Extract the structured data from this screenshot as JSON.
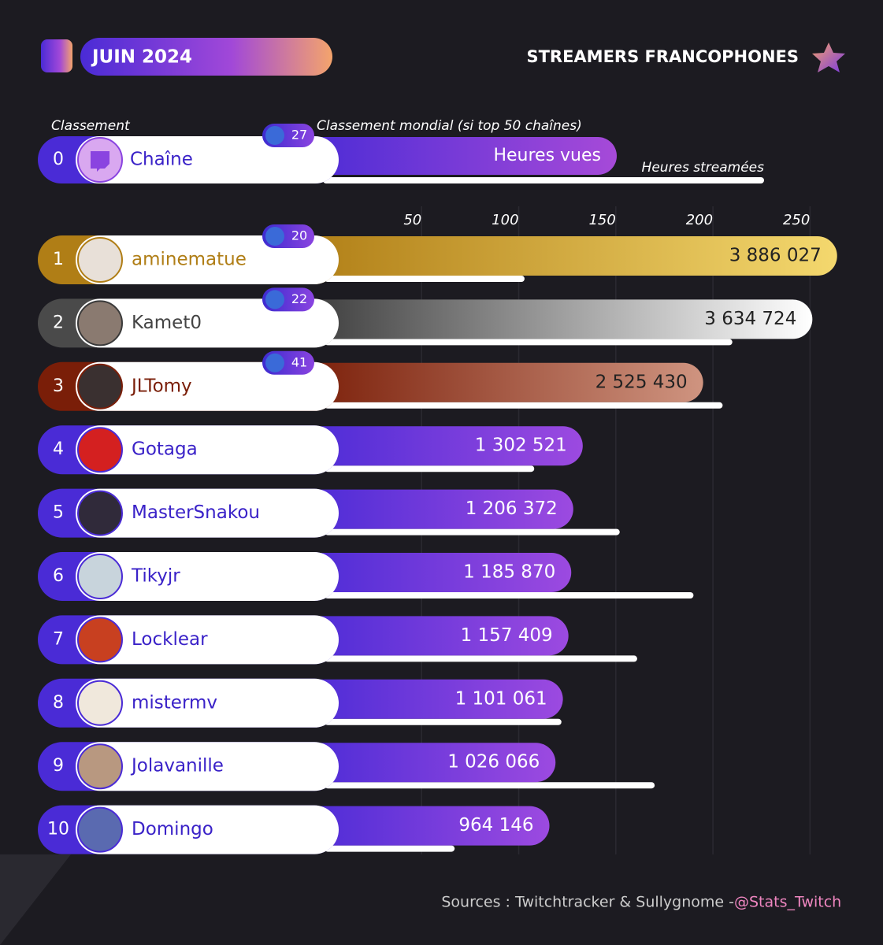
{
  "chart_data": {
    "type": "bar",
    "title": "JUIN 2024",
    "subtitle": "STREAMERS FRANCOPHONES",
    "rank_label": "Classement",
    "world_rank_label": "Classement mondial (si top 50 chaînes)",
    "legend_example": {
      "rank": 0,
      "channel": "Chaîne",
      "world_rank": 27
    },
    "categories": [
      "aminematue",
      "Kamet0",
      "JLTomy",
      "Gotaga",
      "MasterSnakou",
      "Tikyjr",
      "Locklear",
      "mistermv",
      "Jolavanille",
      "Domingo"
    ],
    "ranks": [
      1,
      2,
      3,
      4,
      5,
      6,
      7,
      8,
      9,
      10
    ],
    "world_ranks": [
      20,
      22,
      41,
      null,
      null,
      null,
      null,
      null,
      null,
      null
    ],
    "xlim": [
      0,
      260
    ],
    "xticks": [
      50,
      100,
      150,
      200,
      250
    ],
    "x2lim": [
      0,
      4000000
    ],
    "series": [
      {
        "name": "Heures vues",
        "axis": "x2",
        "colors": [
          "#f4d86e",
          "#ffffff",
          "#cf9480",
          "#9c4ae0",
          "#9c4ae0",
          "#9c4ae0",
          "#9c4ae0",
          "#9c4ae0",
          "#9c4ae0",
          "#9c4ae0"
        ],
        "base_colors": [
          "#b07e16",
          "#3a3a3a",
          "#7a1e08",
          "#4a2bd6",
          "#4a2bd6",
          "#4a2bd6",
          "#4a2bd6",
          "#4a2bd6",
          "#4a2bd6",
          "#4a2bd6"
        ],
        "values": [
          3886027,
          3634724,
          2525430,
          1302521,
          1206372,
          1185870,
          1157409,
          1101061,
          1026066,
          964146
        ],
        "value_labels": [
          "3 886 027",
          "3 634 724",
          "2 525 430",
          "1 302 521",
          "1 206 372",
          "1 185 870",
          "1 157 409",
          "1 101 061",
          "1 026 066",
          "964 146"
        ]
      },
      {
        "name": "Heures streamées",
        "color": "#ffffff",
        "values": [
          103,
          210,
          205,
          108,
          152,
          190,
          161,
          122,
          170,
          67
        ]
      }
    ],
    "source": "Sources : Twitchtracker & Sullygnome - ",
    "handle": "@Stats_Twitch"
  }
}
